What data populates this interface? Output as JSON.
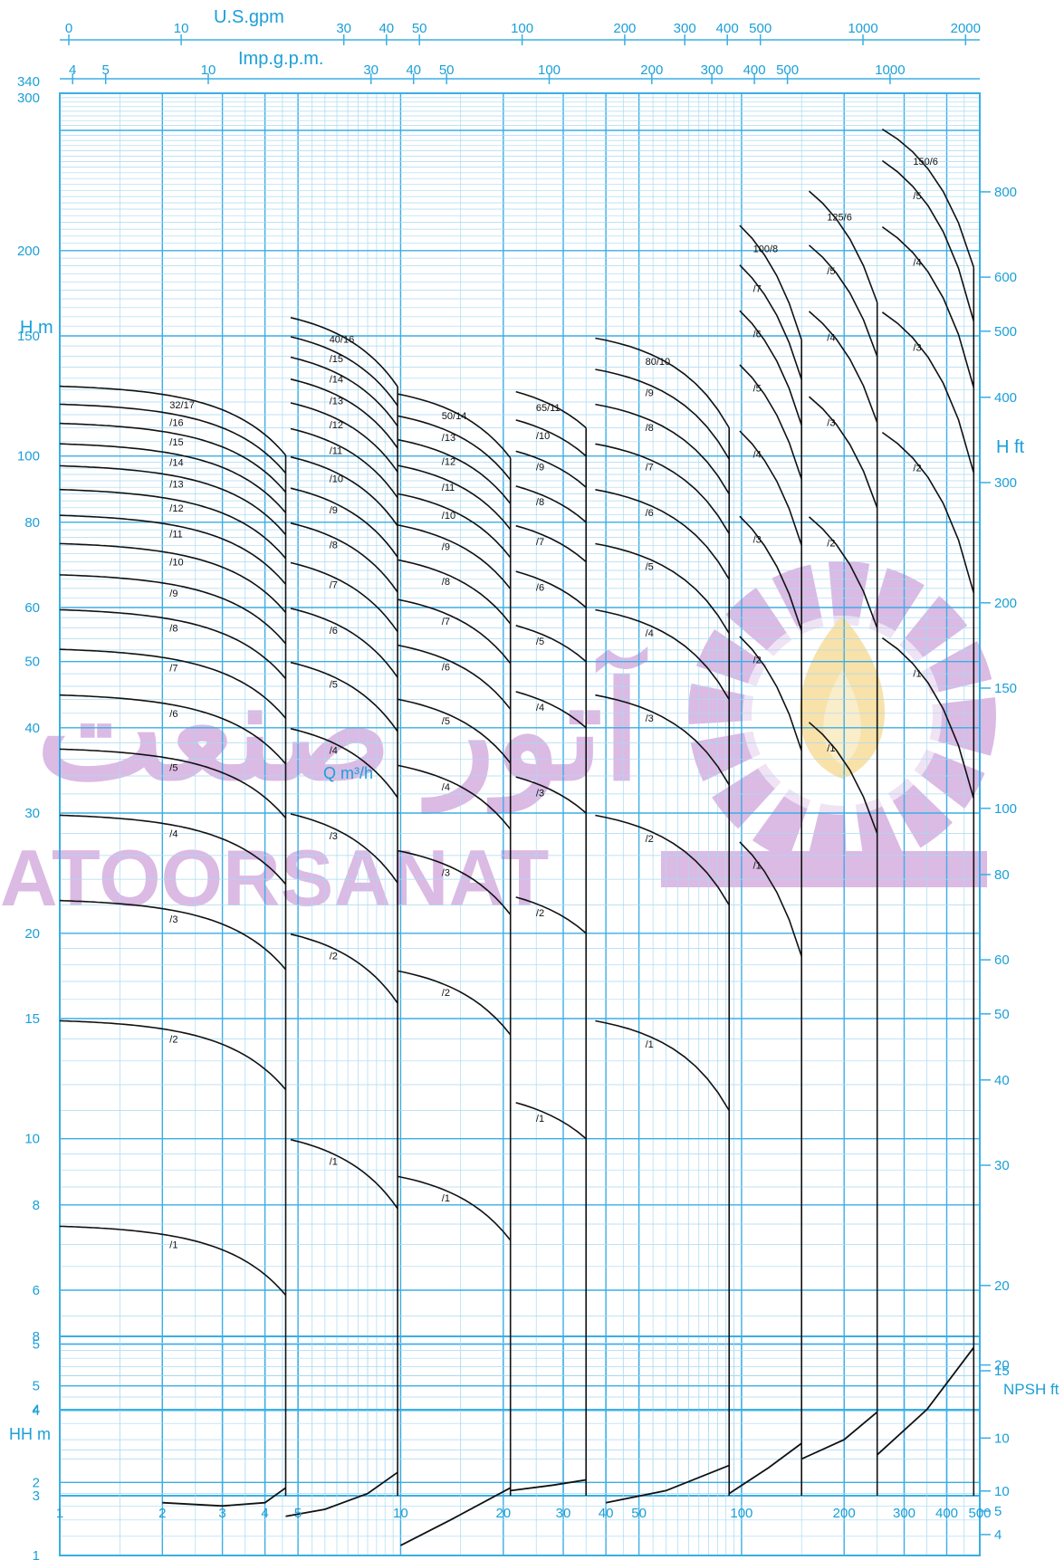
{
  "chart_data": [
    {
      "type": "line",
      "title": "",
      "top_axis_1": {
        "label": "U.S.gpm",
        "ticks": [
          "0",
          "10",
          "30",
          "40",
          "50",
          "100",
          "200",
          "300",
          "400",
          "500",
          "1000",
          "2000"
        ]
      },
      "top_axis_2": {
        "label": "Imp.g.p.m.",
        "ticks": [
          "4",
          "5",
          "10",
          "30",
          "40",
          "50",
          "100",
          "200",
          "300",
          "400",
          "500",
          "1000"
        ]
      },
      "xlabel": "Q m³/h",
      "x_scale": "log",
      "xlim": [
        1,
        500
      ],
      "x_ticks": [
        "1",
        "2",
        "3",
        "4",
        "5",
        "10",
        "20",
        "30",
        "40",
        "50",
        "100",
        "200",
        "300",
        "400",
        "500"
      ],
      "ylabel": "H m",
      "y_scale": "log",
      "ylim": [
        3,
        340
      ],
      "y_ticks": [
        "3",
        "4",
        "5",
        "6",
        "8",
        "10",
        "15",
        "20",
        "30",
        "40",
        "50",
        "60",
        "80",
        "100",
        "150",
        "200",
        "300",
        "340"
      ],
      "y2label": "H ft",
      "y2_ticks": [
        "10",
        "15",
        "20",
        "30",
        "40",
        "50",
        "60",
        "80",
        "100",
        "150",
        "200",
        "300",
        "400",
        "500",
        "600",
        "800"
      ],
      "grid": true,
      "series": [
        {
          "group": "32",
          "q_max": 4.6,
          "curves": [
            {
              "label": "/1",
              "h0": 7.5,
              "hmax": 5.9
            },
            {
              "label": "/2",
              "h0": 15.0,
              "hmax": 11.8
            },
            {
              "label": "/3",
              "h0": 22.5,
              "hmax": 17.7
            },
            {
              "label": "/4",
              "h0": 30.0,
              "hmax": 23.6
            },
            {
              "label": "/5",
              "h0": 37.5,
              "hmax": 29.5
            },
            {
              "label": "/6",
              "h0": 45.0,
              "hmax": 35.4
            },
            {
              "label": "/7",
              "h0": 52.5,
              "hmax": 41.3
            },
            {
              "label": "/8",
              "h0": 60.0,
              "hmax": 47.2
            },
            {
              "label": "/9",
              "h0": 67.5,
              "hmax": 53.1
            },
            {
              "label": "/10",
              "h0": 75.0,
              "hmax": 59.0
            },
            {
              "label": "/11",
              "h0": 82.5,
              "hmax": 64.9
            },
            {
              "label": "/12",
              "h0": 90.0,
              "hmax": 70.8
            },
            {
              "label": "/13",
              "h0": 97.5,
              "hmax": 76.7
            },
            {
              "label": "/14",
              "h0": 105.0,
              "hmax": 82.6
            },
            {
              "label": "/15",
              "h0": 112.5,
              "hmax": 88.5
            },
            {
              "label": "/16",
              "h0": 120.0,
              "hmax": 94.4
            },
            {
              "label": "32/17",
              "h0": 127.5,
              "hmax": 100.3
            }
          ]
        },
        {
          "group": "40",
          "q_max": 9.8,
          "curves": [
            {
              "label": "/1",
              "h0": 10.5,
              "hmax": 7.9
            },
            {
              "label": "/2",
              "h0": 21.0,
              "hmax": 15.8
            },
            {
              "label": "/3",
              "h0": 31.5,
              "hmax": 23.7
            },
            {
              "label": "/4",
              "h0": 42.0,
              "hmax": 31.6
            },
            {
              "label": "/5",
              "h0": 52.5,
              "hmax": 39.5
            },
            {
              "label": "/6",
              "h0": 63.0,
              "hmax": 47.4
            },
            {
              "label": "/7",
              "h0": 73.5,
              "hmax": 55.3
            },
            {
              "label": "/8",
              "h0": 84.0,
              "hmax": 63.2
            },
            {
              "label": "/9",
              "h0": 94.5,
              "hmax": 71.1
            },
            {
              "label": "/10",
              "h0": 105.0,
              "hmax": 79.0
            },
            {
              "label": "/11",
              "h0": 115.5,
              "hmax": 86.9
            },
            {
              "label": "/12",
              "h0": 126.0,
              "hmax": 94.8
            },
            {
              "label": "/13",
              "h0": 136.5,
              "hmax": 102.7
            },
            {
              "label": "/14",
              "h0": 147.0,
              "hmax": 110.6
            },
            {
              "label": "/15",
              "h0": 157.5,
              "hmax": 118.5
            },
            {
              "label": "40/16",
              "h0": 168.0,
              "hmax": 126.4
            }
          ]
        },
        {
          "group": "50",
          "q_max": 21.0,
          "curves": [
            {
              "label": "/1",
              "h0": 9.2,
              "hmax": 7.1
            },
            {
              "label": "/2",
              "h0": 18.4,
              "hmax": 14.2
            },
            {
              "label": "/3",
              "h0": 27.6,
              "hmax": 21.3
            },
            {
              "label": "/4",
              "h0": 36.8,
              "hmax": 28.4
            },
            {
              "label": "/5",
              "h0": 46.0,
              "hmax": 35.5
            },
            {
              "label": "/6",
              "h0": 55.2,
              "hmax": 42.6
            },
            {
              "label": "/7",
              "h0": 64.4,
              "hmax": 49.7
            },
            {
              "label": "/8",
              "h0": 73.6,
              "hmax": 56.8
            },
            {
              "label": "/9",
              "h0": 82.8,
              "hmax": 63.9
            },
            {
              "label": "/10",
              "h0": 92.0,
              "hmax": 71.0
            },
            {
              "label": "/11",
              "h0": 101.2,
              "hmax": 78.1
            },
            {
              "label": "/12",
              "h0": 110.4,
              "hmax": 85.2
            },
            {
              "label": "/13",
              "h0": 119.6,
              "hmax": 92.3
            },
            {
              "label": "50/14",
              "h0": 128.8,
              "hmax": 99.4
            }
          ]
        },
        {
          "group": "65",
          "q_max": 35.0,
          "curves": [
            {
              "label": "/1",
              "h0": 12.0,
              "hmax": 10.0
            },
            {
              "label": "/2",
              "h0": 24.0,
              "hmax": 20.0
            },
            {
              "label": "/3",
              "h0": 36.0,
              "hmax": 30.0
            },
            {
              "label": "/4",
              "h0": 48.0,
              "hmax": 40.0
            },
            {
              "label": "/5",
              "h0": 60.0,
              "hmax": 50.0
            },
            {
              "label": "/6",
              "h0": 72.0,
              "hmax": 60.0
            },
            {
              "label": "/7",
              "h0": 84.0,
              "hmax": 70.0
            },
            {
              "label": "/8",
              "h0": 96.0,
              "hmax": 80.0
            },
            {
              "label": "/9",
              "h0": 108.0,
              "hmax": 90.0
            },
            {
              "label": "/10",
              "h0": 120.0,
              "hmax": 100.0
            },
            {
              "label": "65/11",
              "h0": 132.0,
              "hmax": 110.0
            }
          ]
        },
        {
          "group": "80",
          "q_max": 92.0,
          "curves": [
            {
              "label": "/1",
              "h0": 15.5,
              "hmax": 11.0
            },
            {
              "label": "/2",
              "h0": 31.0,
              "hmax": 22.0
            },
            {
              "label": "/3",
              "h0": 46.5,
              "hmax": 33.0
            },
            {
              "label": "/4",
              "h0": 62.0,
              "hmax": 44.0
            },
            {
              "label": "/5",
              "h0": 77.5,
              "hmax": 55.0
            },
            {
              "label": "/6",
              "h0": 93.0,
              "hmax": 66.0
            },
            {
              "label": "/7",
              "h0": 108.5,
              "hmax": 77.0
            },
            {
              "label": "/8",
              "h0": 124.0,
              "hmax": 88.0
            },
            {
              "label": "/9",
              "h0": 139.5,
              "hmax": 99.0
            },
            {
              "label": "80/10",
              "h0": 155.0,
              "hmax": 110.0
            }
          ]
        },
        {
          "group": "100",
          "q_max": 150.0,
          "curves": [
            {
              "label": "/1",
              "h0": 33.0,
              "hmax": 18.5
            },
            {
              "label": "/2",
              "h0": 66.0,
              "hmax": 37.0
            },
            {
              "label": "/3",
              "h0": 99.0,
              "hmax": 55.5
            },
            {
              "label": "/4",
              "h0": 132.0,
              "hmax": 74.0
            },
            {
              "label": "/5",
              "h0": 165.0,
              "hmax": 92.5
            },
            {
              "label": "/6",
              "h0": 198.0,
              "hmax": 111.0
            },
            {
              "label": "/7",
              "h0": 231.0,
              "hmax": 129.5
            },
            {
              "label": "100/8",
              "h0": 264.0,
              "hmax": 148.0
            }
          ]
        },
        {
          "group": "125",
          "q_max": 250.0,
          "curves": [
            {
              "label": "/1",
              "h0": 48.0,
              "hmax": 28.0
            },
            {
              "label": "/2",
              "h0": 96.0,
              "hmax": 56.0
            },
            {
              "label": "/3",
              "h0": 144.0,
              "hmax": 84.0
            },
            {
              "label": "/4",
              "h0": 192.0,
              "hmax": 112.0
            },
            {
              "label": "/5",
              "h0": 240.0,
              "hmax": 140.0
            },
            {
              "label": "125/6",
              "h0": 288.0,
              "hmax": 168.0
            }
          ]
        },
        {
          "group": "150",
          "q_max": 480.0,
          "curves": [
            {
              "label": "/1",
              "h0": 62.0,
              "hmax": 31.5
            },
            {
              "label": "/2",
              "h0": 124.0,
              "hmax": 63.0
            },
            {
              "label": "/3",
              "h0": 186.0,
              "hmax": 94.5
            },
            {
              "label": "/4",
              "h0": 248.0,
              "hmax": 126.0
            },
            {
              "label": "/5",
              "h0": 310.0,
              "hmax": 157.5
            },
            {
              "label": "150/6",
              "h0": 340.0,
              "hmax": 189.0
            }
          ]
        }
      ]
    },
    {
      "type": "line",
      "title": "",
      "xlabel": "Q m³/h",
      "x_scale": "log",
      "xlim": [
        1,
        500
      ],
      "ylabel": "HH m",
      "y_scale": "log",
      "ylim": [
        1,
        8
      ],
      "y_ticks": [
        "1",
        "2",
        "4",
        "5",
        "8"
      ],
      "y2label": "NPSH ft",
      "y2_ticks": [
        "4",
        "5",
        "10",
        "20"
      ],
      "grid": true,
      "series": [
        {
          "group": "32",
          "x": [
            2.0,
            3.0,
            4.0,
            4.6
          ],
          "y": [
            1.65,
            1.6,
            1.65,
            1.9
          ]
        },
        {
          "group": "40",
          "x": [
            4.6,
            6.0,
            8.0,
            9.8
          ],
          "y": [
            1.45,
            1.55,
            1.8,
            2.2
          ]
        },
        {
          "group": "50",
          "x": [
            10.0,
            14.0,
            21.0
          ],
          "y": [
            1.1,
            1.4,
            1.9
          ]
        },
        {
          "group": "65",
          "x": [
            21.0,
            28.0,
            35.0
          ],
          "y": [
            1.85,
            1.95,
            2.05
          ]
        },
        {
          "group": "80",
          "x": [
            40.0,
            60.0,
            92.0
          ],
          "y": [
            1.65,
            1.85,
            2.35
          ]
        },
        {
          "group": "100",
          "x": [
            92.0,
            120.0,
            150.0
          ],
          "y": [
            1.8,
            2.3,
            2.9
          ]
        },
        {
          "group": "125",
          "x": [
            150.0,
            200.0,
            250.0
          ],
          "y": [
            2.5,
            3.0,
            3.9
          ]
        },
        {
          "group": "150",
          "x": [
            250.0,
            350.0,
            480.0
          ],
          "y": [
            2.6,
            4.0,
            7.2
          ]
        }
      ]
    }
  ],
  "watermark": {
    "arabic": "آتور صنعت",
    "latin": "ATOORSANAT",
    "colors": {
      "purple": "#cfa3dc",
      "flame": "#f6d98e"
    }
  }
}
